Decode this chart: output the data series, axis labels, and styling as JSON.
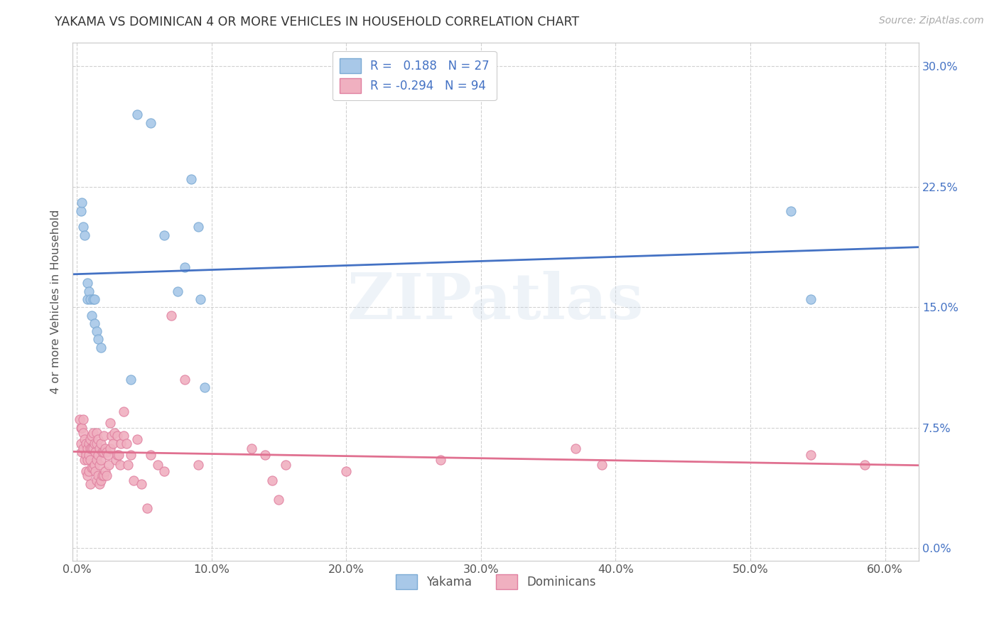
{
  "title": "YAKAMA VS DOMINICAN 4 OR MORE VEHICLES IN HOUSEHOLD CORRELATION CHART",
  "source": "Source: ZipAtlas.com",
  "ylabel": "4 or more Vehicles in Household",
  "xlabel_ticks": [
    "0.0%",
    "10.0%",
    "20.0%",
    "30.0%",
    "40.0%",
    "50.0%",
    "60.0%"
  ],
  "xlabel_vals": [
    0.0,
    0.1,
    0.2,
    0.3,
    0.4,
    0.5,
    0.6
  ],
  "ylabel_ticks": [
    "0.0%",
    "7.5%",
    "15.0%",
    "22.5%",
    "30.0%"
  ],
  "ylabel_vals": [
    0.0,
    0.075,
    0.15,
    0.225,
    0.3
  ],
  "xlim": [
    -0.003,
    0.625
  ],
  "ylim": [
    -0.008,
    0.315
  ],
  "watermark": "ZIPatlas",
  "yakama_color": "#a8c8e8",
  "yakama_edge": "#7baad4",
  "dominican_color": "#f0b0c0",
  "dominican_edge": "#e080a0",
  "trend_yakama_color": "#4472c4",
  "trend_dominican_color": "#e07090",
  "R_yakama": 0.188,
  "N_yakama": 27,
  "R_dominican": -0.294,
  "N_dominican": 94,
  "yakama_x": [
    0.003,
    0.004,
    0.005,
    0.006,
    0.008,
    0.008,
    0.009,
    0.01,
    0.011,
    0.012,
    0.013,
    0.013,
    0.015,
    0.016,
    0.018,
    0.04,
    0.045,
    0.055,
    0.065,
    0.075,
    0.08,
    0.085,
    0.09,
    0.092,
    0.095,
    0.53,
    0.545
  ],
  "yakama_y": [
    0.21,
    0.215,
    0.2,
    0.195,
    0.155,
    0.165,
    0.16,
    0.155,
    0.145,
    0.155,
    0.14,
    0.155,
    0.135,
    0.13,
    0.125,
    0.105,
    0.27,
    0.265,
    0.195,
    0.16,
    0.175,
    0.23,
    0.2,
    0.155,
    0.1,
    0.21,
    0.155
  ],
  "dominican_x": [
    0.002,
    0.003,
    0.003,
    0.004,
    0.004,
    0.005,
    0.005,
    0.005,
    0.006,
    0.006,
    0.007,
    0.007,
    0.007,
    0.008,
    0.008,
    0.008,
    0.009,
    0.009,
    0.009,
    0.01,
    0.01,
    0.01,
    0.01,
    0.011,
    0.011,
    0.011,
    0.012,
    0.012,
    0.012,
    0.013,
    0.013,
    0.014,
    0.014,
    0.015,
    0.015,
    0.015,
    0.015,
    0.016,
    0.016,
    0.016,
    0.017,
    0.017,
    0.017,
    0.018,
    0.018,
    0.018,
    0.019,
    0.019,
    0.02,
    0.02,
    0.02,
    0.021,
    0.021,
    0.022,
    0.022,
    0.023,
    0.024,
    0.025,
    0.025,
    0.026,
    0.027,
    0.028,
    0.029,
    0.03,
    0.03,
    0.031,
    0.032,
    0.033,
    0.035,
    0.035,
    0.037,
    0.038,
    0.04,
    0.042,
    0.045,
    0.048,
    0.052,
    0.055,
    0.06,
    0.065,
    0.07,
    0.08,
    0.09,
    0.13,
    0.14,
    0.145,
    0.15,
    0.155,
    0.2,
    0.27,
    0.37,
    0.39,
    0.545,
    0.585
  ],
  "dominican_y": [
    0.08,
    0.075,
    0.065,
    0.075,
    0.06,
    0.08,
    0.072,
    0.062,
    0.068,
    0.055,
    0.065,
    0.058,
    0.048,
    0.062,
    0.055,
    0.045,
    0.065,
    0.058,
    0.048,
    0.068,
    0.062,
    0.055,
    0.04,
    0.07,
    0.062,
    0.05,
    0.072,
    0.062,
    0.05,
    0.065,
    0.052,
    0.06,
    0.048,
    0.072,
    0.065,
    0.055,
    0.042,
    0.068,
    0.058,
    0.045,
    0.062,
    0.052,
    0.04,
    0.065,
    0.055,
    0.042,
    0.06,
    0.045,
    0.07,
    0.06,
    0.045,
    0.062,
    0.048,
    0.06,
    0.045,
    0.058,
    0.052,
    0.078,
    0.062,
    0.07,
    0.065,
    0.072,
    0.055,
    0.07,
    0.058,
    0.058,
    0.052,
    0.065,
    0.085,
    0.07,
    0.065,
    0.052,
    0.058,
    0.042,
    0.068,
    0.04,
    0.025,
    0.058,
    0.052,
    0.048,
    0.145,
    0.105,
    0.052,
    0.062,
    0.058,
    0.042,
    0.03,
    0.052,
    0.048,
    0.055,
    0.062,
    0.052,
    0.058,
    0.052
  ],
  "background_color": "#ffffff",
  "grid_color": "#cccccc"
}
